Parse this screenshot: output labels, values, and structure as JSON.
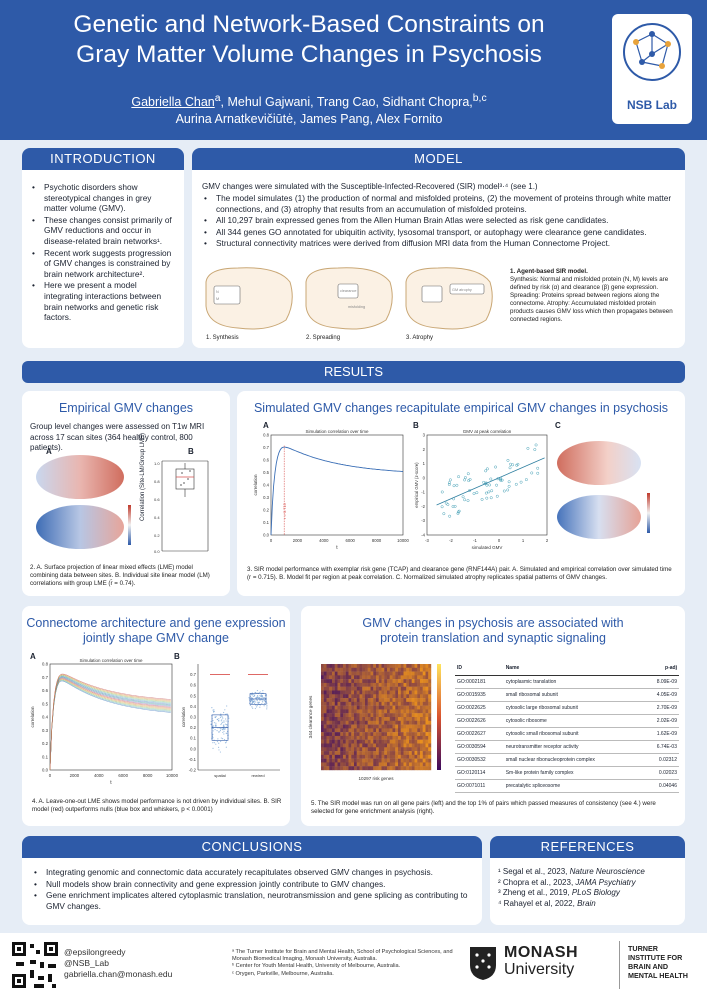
{
  "header": {
    "title_line1": "Genetic and Network-Based Constraints on",
    "title_line2": "Gray Matter Volume Changes in Psychosis",
    "author_first": "Gabriella Chan",
    "authors_rest_line1": ", Mehul Gajwani, Trang Cao, Sidhant Chopra,",
    "sup_a": "a",
    "sup_bc": "b,c",
    "authors_line2": "Aurina Arnatkevičiūtė, James Pang, Alex Fornito",
    "lab_name": "NSB Lab"
  },
  "intro": {
    "title": "INTRODUCTION",
    "bullets": [
      "Psychotic disorders show stereotypical changes in grey matter volume (GMV).",
      "These changes consist primarily of GMV reductions and occur in disease-related brain networks¹.",
      "Recent work suggests progression of GMV changes is constrained by brain network architecture².",
      "Here we present a model integrating interactions between brain networks and genetic risk factors."
    ]
  },
  "model": {
    "title": "MODEL",
    "lead": "GMV changes were simulated with the Susceptible-Infected-Recovered (SIR) model³·⁴ (see 1.)",
    "bullets": [
      "The model simulates (1) the production of normal and misfolded proteins, (2) the movement of proteins through white matter connections, and (3) atrophy that results from an accumulation of misfolded proteins.",
      "All 10,297 brain expressed genes from the Allen Human Brain Atlas were selected as risk gene candidates.",
      "All 344 genes GO annotated for ubiquitin activity, lysosomal transport, or autophagy were clearance gene candidates.",
      "Structural connectivity matrices were derived from diffusion MRI data from the Human Connectome Project."
    ],
    "step1": "1. Synthesis",
    "step2": "2. Spreading",
    "step3": "3. Atrophy",
    "caption_title": "1. Agent-based SIR model.",
    "caption_body": "Synthesis: Normal and misfolded protein (N, M) levels are defined by risk (α) and clearance (β) gene expression. Spreading: Proteins spread between regions along the connectome. Atrophy: Accumulated misfolded protein products causes GMV loss which then propagates between connected regions.",
    "diagram_clearance": "clearance",
    "diagram_mis": "misfolding",
    "diagram_gm": "GM atrophy"
  },
  "results": {
    "title": "RESULTS"
  },
  "empirical": {
    "title": "Empirical GMV changes",
    "text": "Group level changes were assessed on T1w MRI across 17 scan sites (364 healthy control, 800 patients).",
    "label_a": "A",
    "label_b": "B",
    "b_ylabel": "Correlation (Site-LM/Group LME)",
    "caption": "2. A. Surface projection of linear mixed effects (LME) model combining data between sites. B. Individual site linear model (LM) correlations with group LME (r̄ = 0.74)."
  },
  "simulated": {
    "title": "Simulated GMV changes recapitulate empirical GMV changes in psychosis",
    "label_a": "A",
    "label_b": "B",
    "label_c": "C",
    "a_title": "Simulation correlation over time",
    "a_xlabel": "t",
    "a_ylabel": "correlation",
    "a_annot": "r = 0.715",
    "b_title": "GMV at peak correlation",
    "b_xlabel": "simulated GMV",
    "b_ylabel": "empirical GMV (z-score)",
    "caption": "3. SIR model performance with exemplar risk gene (TCAP) and clearance gene (RNF144A) pair. A. Simulated and empirical correlation over simulated time (r = 0.715). B. Model fit per region at peak correlation. C. Normalized simulated atrophy replicates spatial patterns of GMV changes."
  },
  "connectome": {
    "title_line1": "Connectome architecture and gene expression",
    "title_line2": "jointly shape GMV change",
    "label_a": "A",
    "label_b": "B",
    "a_title": "Simulation correlation over time",
    "a_xlabel": "t",
    "a_ylabel": "correlation",
    "b_ylabel": "correlation",
    "b_cat1": "spatial",
    "b_cat2": "rewired",
    "caption": "4. A. Leave-one-out LME shows model performance is not driven by individual sites. B. SIR model (red) outperforms nulls (blue box and whiskers, p < 0.0001)"
  },
  "enrichment": {
    "title_line1": "GMV changes in psychosis are associated with",
    "title_line2": "protein translation and synaptic signaling",
    "heat_ylabel": "344 clearance genes",
    "heat_xlabel": "10297 risk genes",
    "columns": [
      "ID",
      "Name",
      "p-adj"
    ],
    "rows": [
      [
        "GO:0002181",
        "cytoplasmic translation",
        "8.09E-09"
      ],
      [
        "GO:0015935",
        "small ribosomal subunit",
        "4.05E-09"
      ],
      [
        "GO:0022625",
        "cytosolic large ribosomal subunit",
        "2.70E-09"
      ],
      [
        "GO:0022626",
        "cytosolic ribosome",
        "2.02E-09"
      ],
      [
        "GO:0022627",
        "cytosolic small ribosomal subunit",
        "1.62E-09"
      ],
      [
        "GO:0030594",
        "neurotransmitter receptor activity",
        "6.74E-03"
      ],
      [
        "GO:0030532",
        "small nuclear ribonucleoprotein complex",
        "0.02312"
      ],
      [
        "GO:0120114",
        "Sm-like protein family complex",
        "0.02023"
      ],
      [
        "GO:0071011",
        "precatalytic spliceosome",
        "0.04046"
      ]
    ],
    "caption": "5. The SIR model was run on all gene pairs (left) and the top 1% of pairs which passed measures of consistency (see 4.) were selected for gene enrichment analysis (right)."
  },
  "conclusions": {
    "title": "CONCLUSIONS",
    "bullets": [
      "Integrating genomic and connectomic data accurately recapitulates observed GMV changes in psychosis.",
      "Null models show brain connectivity and gene expression jointly contribute to GMV changes.",
      "Gene enrichment implicates altered cytoplasmic translation, neurotransmission and gene splicing as contributing to GMV changes."
    ]
  },
  "references": {
    "title": "REFERENCES",
    "items": [
      {
        "num": "¹",
        "text": "Segal et al., 2023, ",
        "journal": "Nature Neuroscience"
      },
      {
        "num": "²",
        "text": "Chopra et al., 2023, ",
        "journal": "JAMA Psychiatry"
      },
      {
        "num": "³",
        "text": "Zheng et al., 2019, ",
        "journal": "PLoS Biology"
      },
      {
        "num": "⁴",
        "text": "Rahayel et al, 2022, ",
        "journal": "Brain"
      }
    ]
  },
  "footer": {
    "handle1": "@epsilongreedy",
    "handle2": "@NSB_Lab",
    "email": "gabriella.chan@monash.edu",
    "aff_a": "ᵃ The Turner Institute for Brain and Mental Health, School of Psychological Sciences, and Monash Biomedical Imaging, Monash University, Australia.",
    "aff_b": "ᵇ Center for Youth Mental Health, University of Melbourne, Australia.",
    "aff_c": "ᶜ Orygen, Parkville, Melbourne, Australia.",
    "monash1": "MONASH",
    "monash2": "University",
    "turner": [
      "TURNER",
      "INSTITUTE FOR",
      "BRAIN AND",
      "MENTAL HEALTH"
    ]
  },
  "colors": {
    "primary": "#2e5aa8",
    "background": "#e6edf6",
    "red": "#d9534f",
    "blue": "#3b6fb6"
  }
}
